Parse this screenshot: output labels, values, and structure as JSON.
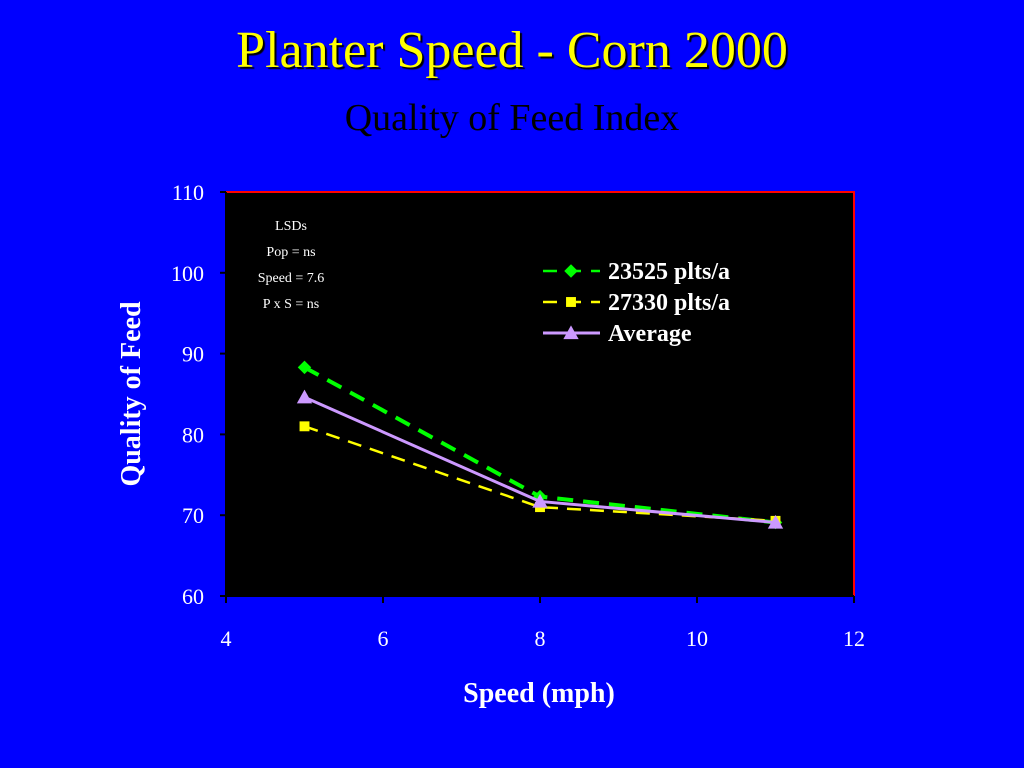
{
  "slide": {
    "title": "Planter Speed - Corn 2000",
    "subtitle": "Quality of Feed Index"
  },
  "chart_data": {
    "type": "line",
    "xlabel": "Speed (mph)",
    "ylabel": "Quality of Feed",
    "xlim": [
      4,
      12
    ],
    "ylim": [
      60,
      110
    ],
    "xticks": [
      4,
      6,
      8,
      10,
      12
    ],
    "yticks": [
      60,
      70,
      80,
      90,
      100,
      110
    ],
    "grid": false,
    "legend_position": "top-right",
    "plot_background": "#000000",
    "plot_border_color": "#ff0000",
    "series": [
      {
        "name": "23525 plts/a",
        "x": [
          5,
          8,
          11
        ],
        "y": [
          88.3,
          72.3,
          69.1
        ],
        "color": "#00ff00",
        "marker": "diamond",
        "line_style": "dashed"
      },
      {
        "name": "27330 plts/a",
        "x": [
          5,
          8,
          11
        ],
        "y": [
          81,
          71,
          69.3
        ],
        "color": "#ffff00",
        "marker": "square",
        "line_style": "dashed"
      },
      {
        "name": "Average",
        "x": [
          5,
          8,
          11
        ],
        "y": [
          84.6,
          71.7,
          69.1
        ],
        "color": "#cc99ff",
        "marker": "triangle",
        "line_style": "solid"
      }
    ],
    "annotation": [
      "LSDs",
      "Pop = ns",
      "Speed = 7.6",
      "P x S = ns"
    ]
  }
}
